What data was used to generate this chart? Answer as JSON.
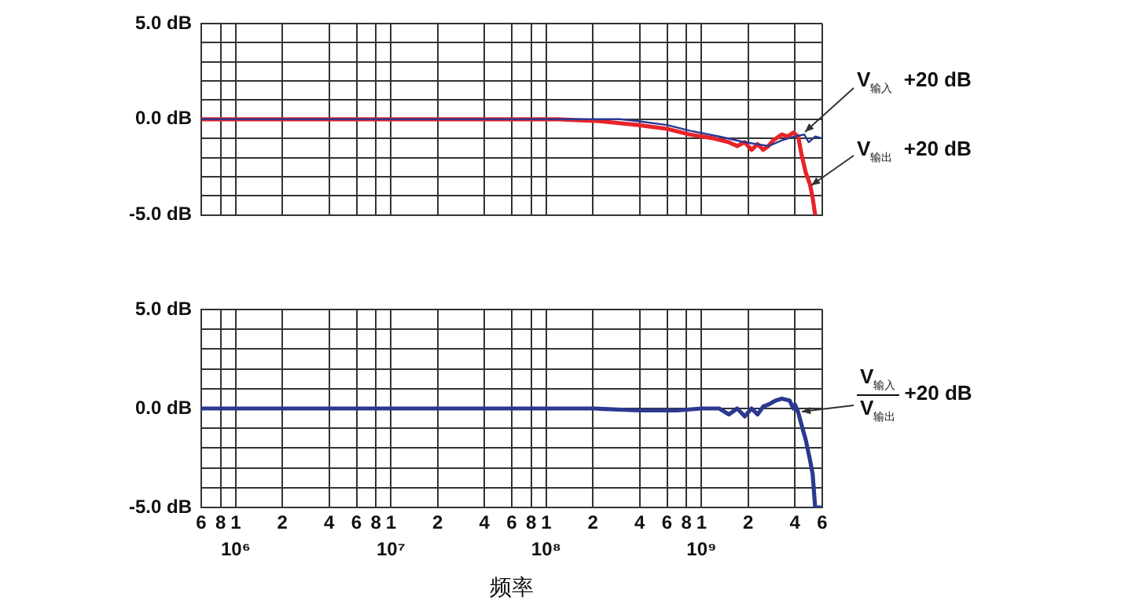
{
  "chart_data": [
    {
      "type": "line",
      "log": "x",
      "grid": true,
      "tick_labels": "y",
      "xlim": [
        600000,
        6000000000
      ],
      "ylim": [
        -5,
        5
      ],
      "xticks": [
        600000,
        800000,
        1000000,
        2000000,
        4000000,
        6000000,
        8000000,
        10000000,
        20000000,
        40000000,
        60000000,
        80000000,
        100000000,
        200000000,
        400000000,
        600000000,
        800000000,
        1000000000,
        2000000000,
        4000000000,
        6000000000
      ],
      "yticks": [
        {
          "value": 5,
          "label": "5.0 dB"
        },
        {
          "value": 4,
          "label": null
        },
        {
          "value": 3,
          "label": null
        },
        {
          "value": 2,
          "label": null
        },
        {
          "value": 1,
          "label": null
        },
        {
          "value": 0,
          "label": "0.0 dB"
        },
        {
          "value": -1,
          "label": null
        },
        {
          "value": -2,
          "label": null
        },
        {
          "value": -3,
          "label": null
        },
        {
          "value": -4,
          "label": null
        },
        {
          "value": -5,
          "label": "-5.0 dB"
        }
      ],
      "series": [
        {
          "name": "V$_{输入}$ +20 dB",
          "color": "#2b3990",
          "x": [
            600000,
            1000000,
            2000000,
            5000000,
            10000000,
            20000000,
            50000000,
            100000000,
            185000000,
            300000000,
            390000000,
            600000000,
            840000000,
            1300000000,
            1900000000,
            2700000000,
            3300000000,
            4000000000,
            4600000000,
            4900000000,
            5400000000,
            6000000000
          ],
          "values": [
            0,
            0,
            0,
            0,
            0,
            0,
            0,
            0,
            0,
            0,
            -0.1,
            -0.3,
            -0.6,
            -0.9,
            -1.2,
            -1.4,
            -1.1,
            -0.9,
            -0.8,
            -1.2,
            -0.9,
            -1.0
          ]
        },
        {
          "name": "V$_{输出}$ +20 dB",
          "color": "#e8242a",
          "x": [
            600000,
            1000000,
            2000000,
            5000000,
            10000000,
            20000000,
            50000000,
            120000000,
            220000000,
            390000000,
            600000000,
            840000000,
            1200000000,
            1500000000,
            1700000000,
            1900000000,
            2100000000,
            2300000000,
            2500000000,
            2700000000,
            2900000000,
            3300000000,
            3600000000,
            3900000000,
            4200000000,
            4400000000,
            4700000000,
            5000000000,
            5200000000,
            5400000000
          ],
          "values": [
            0,
            0,
            0,
            0,
            0,
            0,
            0,
            0,
            -0.1,
            -0.3,
            -0.5,
            -0.8,
            -1.0,
            -1.2,
            -1.4,
            -1.2,
            -1.6,
            -1.3,
            -1.6,
            -1.4,
            -1.1,
            -0.8,
            -0.9,
            -0.7,
            -0.9,
            -1.8,
            -2.8,
            -3.4,
            -4.1,
            -5.0
          ]
        }
      ]
    },
    {
      "type": "line",
      "log": "x",
      "grid": true,
      "xlabel": "频率",
      "xlim": [
        600000,
        6000000000
      ],
      "ylim": [
        -5,
        5
      ],
      "xticks": [
        {
          "value": 600000,
          "label": null
        },
        {
          "value": 800000,
          "label": null
        },
        {
          "value": 1000000,
          "label": "10⁶"
        },
        {
          "value": 2000000,
          "label": null
        },
        {
          "value": 4000000,
          "label": null
        },
        {
          "value": 6000000,
          "label": null
        },
        {
          "value": 8000000,
          "label": null
        },
        {
          "value": 10000000,
          "label": "10⁷"
        },
        {
          "value": 20000000,
          "label": null
        },
        {
          "value": 40000000,
          "label": null
        },
        {
          "value": 60000000,
          "label": null
        },
        {
          "value": 80000000,
          "label": null
        },
        {
          "value": 100000000,
          "label": "10⁸"
        },
        {
          "value": 200000000,
          "label": null
        },
        {
          "value": 400000000,
          "label": null
        },
        {
          "value": 600000000,
          "label": null
        },
        {
          "value": 800000000,
          "label": null
        },
        {
          "value": 1000000000,
          "label": "10⁹"
        },
        {
          "value": 2000000000,
          "label": null
        },
        {
          "value": 4000000000,
          "label": null
        },
        {
          "value": 6000000000,
          "label": null
        }
      ],
      "yticks": [
        {
          "value": 5,
          "label": "5.0 dB"
        },
        {
          "value": 4,
          "label": null
        },
        {
          "value": 3,
          "label": null
        },
        {
          "value": 2,
          "label": null
        },
        {
          "value": 1,
          "label": null
        },
        {
          "value": 0,
          "label": "0.0 dB"
        },
        {
          "value": -1,
          "label": null
        },
        {
          "value": -2,
          "label": null
        },
        {
          "value": -3,
          "label": null
        },
        {
          "value": -4,
          "label": null
        },
        {
          "value": -5,
          "label": "-5.0 dB"
        }
      ],
      "annotations": [
        "6",
        "8",
        "1",
        "2",
        "4",
        "6",
        "8",
        "1",
        "2",
        "4",
        "6",
        "8",
        "1",
        "2",
        "4",
        "6",
        "8",
        "1",
        "2",
        "4",
        "6"
      ],
      "series": [
        {
          "name": "V$_{输入}$ V$_{输出}$ +20 dB",
          "color": "#2b3990",
          "x": [
            600000,
            1000000,
            2000000,
            3000000,
            5000000,
            10000000,
            20000000,
            50000000,
            100000000,
            200000000,
            400000000,
            700000000,
            1000000000,
            1300000000,
            1500000000,
            1700000000,
            1900000000,
            2100000000,
            2300000000,
            2500000000,
            2700000000,
            3000000000,
            3300000000,
            3700000000,
            3900000000,
            4000000000,
            4200000000,
            4400000000,
            4700000000,
            5000000000,
            5200000000,
            5400000000,
            5900000000
          ],
          "values": [
            0,
            0,
            0,
            0,
            0,
            0,
            0,
            0,
            0,
            0,
            -0.1,
            -0.1,
            0,
            0,
            -0.3,
            0,
            -0.4,
            0,
            -0.3,
            0.1,
            0.2,
            0.4,
            0.5,
            0.4,
            0,
            0.2,
            -0.2,
            -0.8,
            -1.6,
            -2.6,
            -3.3,
            -5.0,
            -5.0
          ]
        }
      ]
    }
  ]
}
